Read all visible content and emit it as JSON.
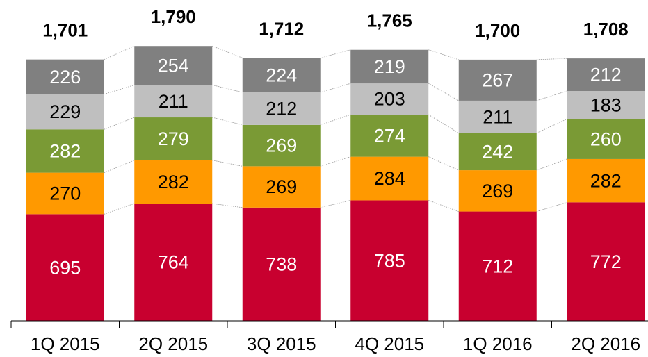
{
  "chart_data": {
    "type": "stacked_bar",
    "categories": [
      "1Q 2015",
      "2Q 2015",
      "3Q 2015",
      "4Q 2015",
      "1Q 2016",
      "2Q 2016"
    ],
    "series": [
      {
        "color": "#c8002f",
        "label_color": "#ffffff",
        "values": [
          695,
          764,
          738,
          785,
          712,
          772
        ]
      },
      {
        "color": "#ff9900",
        "label_color": "#000000",
        "values": [
          270,
          282,
          269,
          284,
          269,
          282
        ]
      },
      {
        "color": "#7a9a35",
        "label_color": "#ffffff",
        "values": [
          282,
          279,
          269,
          274,
          242,
          260
        ]
      },
      {
        "color": "#bfbfbf",
        "label_color": "#000000",
        "values": [
          229,
          211,
          212,
          203,
          211,
          183
        ]
      },
      {
        "color": "#808080",
        "label_color": "#ffffff",
        "values": [
          226,
          254,
          224,
          219,
          267,
          212
        ]
      }
    ],
    "total_labels": [
      "1,701",
      "1,790",
      "1,712",
      "1,765",
      "1,700",
      "1,708"
    ],
    "ylim": [
      0,
      1800
    ]
  }
}
